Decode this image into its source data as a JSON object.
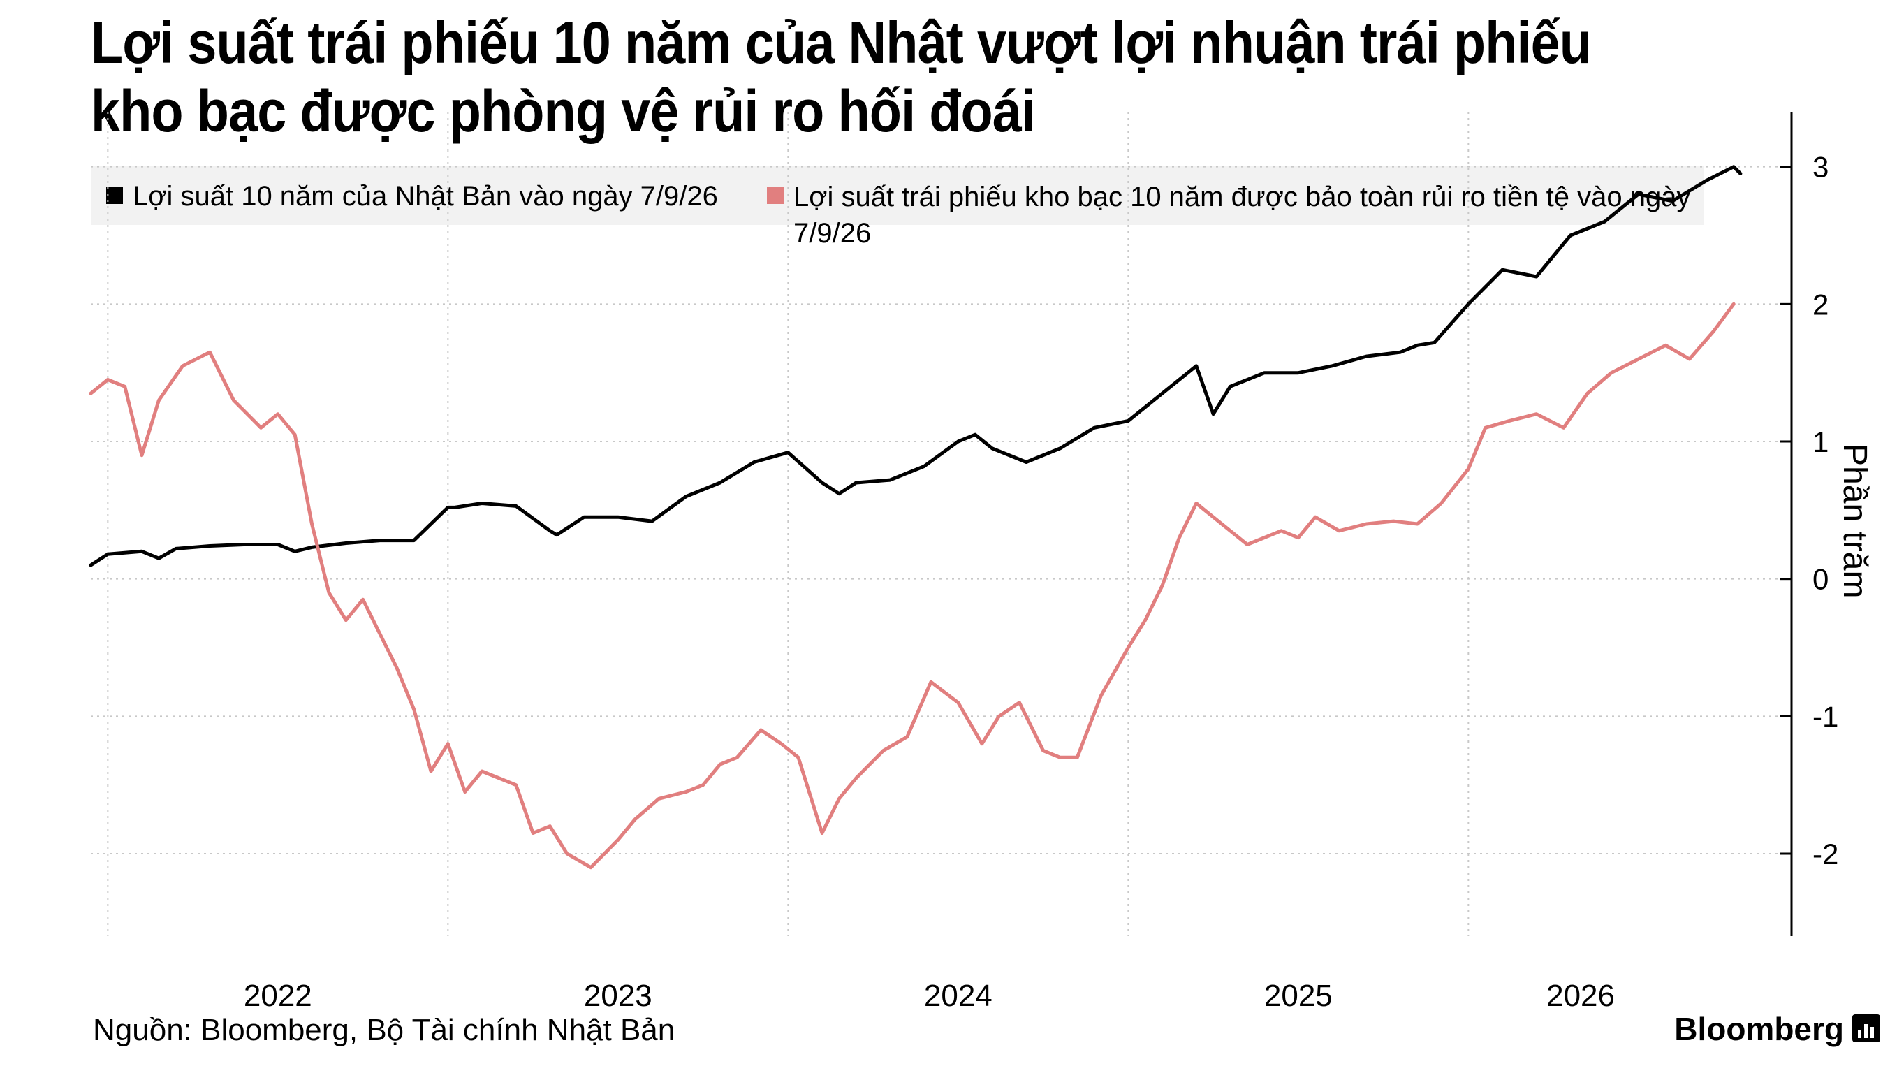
{
  "title_lines": [
    "Lợi suất trái phiếu 10 năm của Nhật vượt lợi nhuận trái phiếu",
    "kho bạc được phòng vệ rủi ro hối đoái"
  ],
  "source": "Nguồn: Bloomberg, Bộ Tài chính Nhật Bản",
  "brand": "Bloomberg",
  "colors": {
    "japan": "#000000",
    "treasury": "#e17f7f",
    "grid": "#c8c8c8",
    "legend_bg": "#f2f2f2"
  },
  "chart_data": {
    "type": "line",
    "title": "Lợi suất trái phiếu 10 năm của Nhật vượt lợi nhuận trái phiếu kho bạc được phòng vệ rủi ro hối đoái",
    "ylabel": "Phần trăm",
    "ylim": [
      -2.6,
      3.4
    ],
    "yticks": [
      -2,
      -1,
      0,
      1,
      2,
      3
    ],
    "ytick_labels": [
      "-2",
      "-1",
      "0",
      "1",
      "2",
      "3"
    ],
    "xlim": [
      2021.45,
      2026.45
    ],
    "xtick_labels": [
      "2022",
      "2023",
      "2024",
      "2025",
      "2026"
    ],
    "xtick_positions": [
      2021.5,
      2022.5,
      2023.5,
      2024.5,
      2025.5
    ],
    "xlabel_positions": [
      2022.0,
      2023.0,
      2024.0,
      2025.0,
      2025.83
    ],
    "grid": "dotted",
    "legend_position": "top",
    "series": [
      {
        "name": "Lợi suất 10 năm của Nhật Bản vào ngày 7/9/26",
        "color": "#000000",
        "x": [
          2021.45,
          2021.5,
          2021.6,
          2021.65,
          2021.7,
          2021.8,
          2021.9,
          2022.0,
          2022.05,
          2022.1,
          2022.2,
          2022.3,
          2022.4,
          2022.5,
          2022.52,
          2022.6,
          2022.7,
          2022.8,
          2022.82,
          2022.9,
          2023.0,
          2023.1,
          2023.2,
          2023.3,
          2023.4,
          2023.5,
          2023.6,
          2023.65,
          2023.7,
          2023.8,
          2023.9,
          2024.0,
          2024.05,
          2024.1,
          2024.2,
          2024.3,
          2024.4,
          2024.5,
          2024.6,
          2024.7,
          2024.75,
          2024.8,
          2024.9,
          2025.0,
          2025.1,
          2025.2,
          2025.3,
          2025.35,
          2025.4,
          2025.5,
          2025.6,
          2025.7,
          2025.75,
          2025.8,
          2025.9,
          2026.0,
          2026.1,
          2026.2,
          2026.28,
          2026.3
        ],
        "values": [
          0.1,
          0.18,
          0.2,
          0.15,
          0.22,
          0.24,
          0.25,
          0.25,
          0.2,
          0.23,
          0.26,
          0.28,
          0.28,
          0.52,
          0.52,
          0.55,
          0.53,
          0.35,
          0.32,
          0.45,
          0.45,
          0.42,
          0.6,
          0.7,
          0.85,
          0.92,
          0.7,
          0.62,
          0.7,
          0.72,
          0.82,
          1.0,
          1.05,
          0.95,
          0.85,
          0.95,
          1.1,
          1.15,
          1.35,
          1.55,
          1.2,
          1.4,
          1.5,
          1.5,
          1.55,
          1.62,
          1.65,
          1.7,
          1.72,
          2.0,
          2.25,
          2.2,
          2.35,
          2.5,
          2.6,
          2.8,
          2.75,
          2.9,
          3.0,
          2.95
        ]
      },
      {
        "name": "Lợi suất trái phiếu kho bạc 10 năm được bảo toàn rủi ro tiền tệ vào ngày 7/9/26",
        "color": "#e17f7f",
        "x": [
          2021.45,
          2021.5,
          2021.55,
          2021.6,
          2021.65,
          2021.72,
          2021.8,
          2021.87,
          2021.95,
          2022.0,
          2022.05,
          2022.1,
          2022.15,
          2022.2,
          2022.25,
          2022.3,
          2022.35,
          2022.4,
          2022.45,
          2022.5,
          2022.55,
          2022.6,
          2022.7,
          2022.75,
          2022.8,
          2022.85,
          2022.92,
          2023.0,
          2023.05,
          2023.12,
          2023.2,
          2023.25,
          2023.3,
          2023.35,
          2023.42,
          2023.48,
          2023.53,
          2023.6,
          2023.65,
          2023.7,
          2023.78,
          2023.85,
          2023.92,
          2024.0,
          2024.07,
          2024.12,
          2024.18,
          2024.25,
          2024.3,
          2024.35,
          2024.42,
          2024.5,
          2024.55,
          2024.6,
          2024.65,
          2024.7,
          2024.75,
          2024.85,
          2024.95,
          2025.0,
          2025.05,
          2025.12,
          2025.2,
          2025.28,
          2025.35,
          2025.42,
          2025.5,
          2025.55,
          2025.62,
          2025.7,
          2025.78,
          2025.85,
          2025.92,
          2026.0,
          2026.08,
          2026.15,
          2026.22,
          2026.28
        ],
        "values": [
          1.35,
          1.45,
          1.4,
          0.9,
          1.3,
          1.55,
          1.65,
          1.3,
          1.1,
          1.2,
          1.05,
          0.4,
          -0.1,
          -0.3,
          -0.15,
          -0.4,
          -0.65,
          -0.95,
          -1.4,
          -1.2,
          -1.55,
          -1.4,
          -1.5,
          -1.85,
          -1.8,
          -2.0,
          -2.1,
          -1.9,
          -1.75,
          -1.6,
          -1.55,
          -1.5,
          -1.35,
          -1.3,
          -1.1,
          -1.2,
          -1.3,
          -1.85,
          -1.6,
          -1.45,
          -1.25,
          -1.15,
          -0.75,
          -0.9,
          -1.2,
          -1.0,
          -0.9,
          -1.25,
          -1.3,
          -1.3,
          -0.85,
          -0.5,
          -0.3,
          -0.05,
          0.3,
          0.55,
          0.45,
          0.25,
          0.35,
          0.3,
          0.45,
          0.35,
          0.4,
          0.42,
          0.4,
          0.55,
          0.8,
          1.1,
          1.15,
          1.2,
          1.1,
          1.35,
          1.5,
          1.6,
          1.7,
          1.6,
          1.8,
          2.0
        ]
      }
    ]
  }
}
